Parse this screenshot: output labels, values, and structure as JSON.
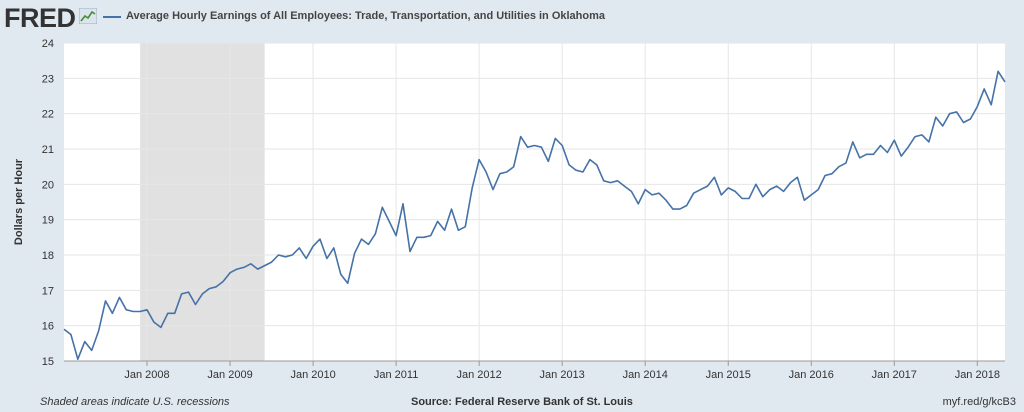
{
  "header": {
    "logo_text": "FRED",
    "legend_label": "Average Hourly Earnings of All Employees: Trade, Transportation, and Utilities in Oklahoma"
  },
  "footer": {
    "recession_note": "Shaded areas indicate U.S. recessions",
    "source": "Source: Federal Reserve Bank of St. Louis",
    "short_url": "myf.red/g/kcB3"
  },
  "colors": {
    "line": "#4572a7",
    "recession": "#e1e1e1",
    "plot_background": "#ffffff",
    "page_background": "#e1e9f0",
    "grid": "#e6e6e6"
  },
  "chart_data": {
    "type": "line",
    "title": "",
    "xlabel": "",
    "ylabel": "Dollars per Hour",
    "ylim": [
      15,
      24
    ],
    "yticks": [
      15,
      16,
      17,
      18,
      19,
      20,
      21,
      22,
      23,
      24
    ],
    "xlim": [
      "2007-01",
      "2018-05"
    ],
    "xticks": [
      {
        "date": "2008-01",
        "label": "Jan 2008"
      },
      {
        "date": "2009-01",
        "label": "Jan 2009"
      },
      {
        "date": "2010-01",
        "label": "Jan 2010"
      },
      {
        "date": "2011-01",
        "label": "Jan 2011"
      },
      {
        "date": "2012-01",
        "label": "Jan 2012"
      },
      {
        "date": "2013-01",
        "label": "Jan 2013"
      },
      {
        "date": "2014-01",
        "label": "Jan 2014"
      },
      {
        "date": "2015-01",
        "label": "Jan 2015"
      },
      {
        "date": "2016-01",
        "label": "Jan 2016"
      },
      {
        "date": "2017-01",
        "label": "Jan 2017"
      },
      {
        "date": "2018-01",
        "label": "Jan 2018"
      }
    ],
    "grid": true,
    "recessions": [
      {
        "start": "2007-12",
        "end": "2009-06"
      }
    ],
    "series": [
      {
        "start": "2007-01",
        "frequency": "monthly",
        "values": [
          15.9,
          15.75,
          15.05,
          15.55,
          15.3,
          15.85,
          16.7,
          16.35,
          16.8,
          16.45,
          16.4,
          16.4,
          16.45,
          16.1,
          15.95,
          16.35,
          16.35,
          16.9,
          16.95,
          16.6,
          16.9,
          17.05,
          17.1,
          17.25,
          17.5,
          17.6,
          17.65,
          17.75,
          17.6,
          17.7,
          17.8,
          18.0,
          17.95,
          18.0,
          18.2,
          17.9,
          18.25,
          18.45,
          17.9,
          18.2,
          17.45,
          17.2,
          18.05,
          18.45,
          18.3,
          18.6,
          19.35,
          18.95,
          18.55,
          19.45,
          18.1,
          18.5,
          18.5,
          18.55,
          18.95,
          18.7,
          19.3,
          18.7,
          18.8,
          19.9,
          20.7,
          20.35,
          19.85,
          20.3,
          20.35,
          20.5,
          21.35,
          21.05,
          21.1,
          21.05,
          20.65,
          21.3,
          21.1,
          20.55,
          20.4,
          20.35,
          20.7,
          20.55,
          20.1,
          20.05,
          20.1,
          19.95,
          19.8,
          19.45,
          19.85,
          19.7,
          19.75,
          19.55,
          19.3,
          19.3,
          19.4,
          19.75,
          19.85,
          19.95,
          20.2,
          19.7,
          19.9,
          19.8,
          19.6,
          19.6,
          20.0,
          19.65,
          19.85,
          19.95,
          19.8,
          20.05,
          20.2,
          19.55,
          19.7,
          19.85,
          20.25,
          20.3,
          20.5,
          20.6,
          21.2,
          20.75,
          20.85,
          20.85,
          21.1,
          20.9,
          21.25,
          20.8,
          21.05,
          21.35,
          21.4,
          21.2,
          21.9,
          21.65,
          22.0,
          22.05,
          21.75,
          21.85,
          22.2,
          22.7,
          22.25,
          23.2,
          22.9
        ]
      }
    ]
  }
}
